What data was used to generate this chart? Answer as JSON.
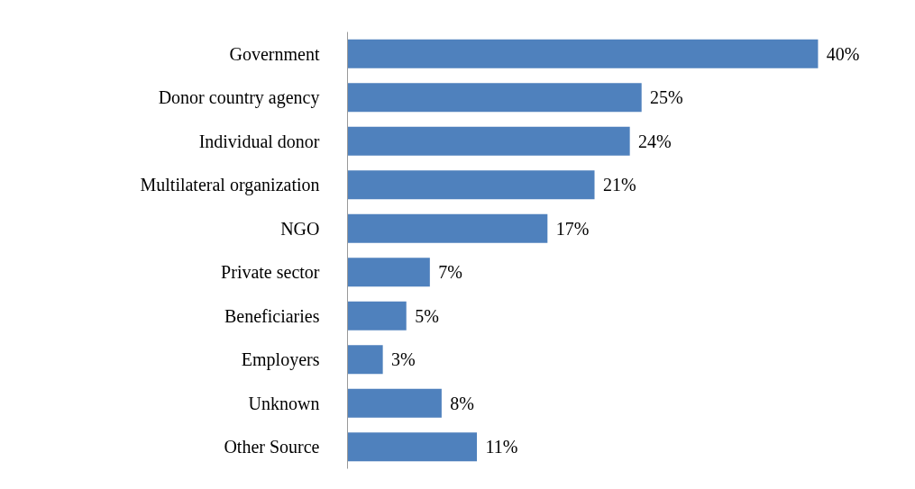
{
  "chart_data": {
    "type": "bar",
    "orientation": "horizontal",
    "categories": [
      "Government",
      "Donor country agency",
      "Individual donor",
      "Multilateral organization",
      "NGO",
      "Private sector",
      "Beneficiaries",
      "Employers",
      "Unknown",
      "Other Source"
    ],
    "values": [
      40,
      25,
      24,
      21,
      17,
      7,
      5,
      3,
      8,
      11
    ],
    "value_labels": [
      "40%",
      "25%",
      "24%",
      "21%",
      "17%",
      "7%",
      "5%",
      "3%",
      "8%",
      "11%"
    ],
    "color": "#4f81bd",
    "grid": false
  }
}
